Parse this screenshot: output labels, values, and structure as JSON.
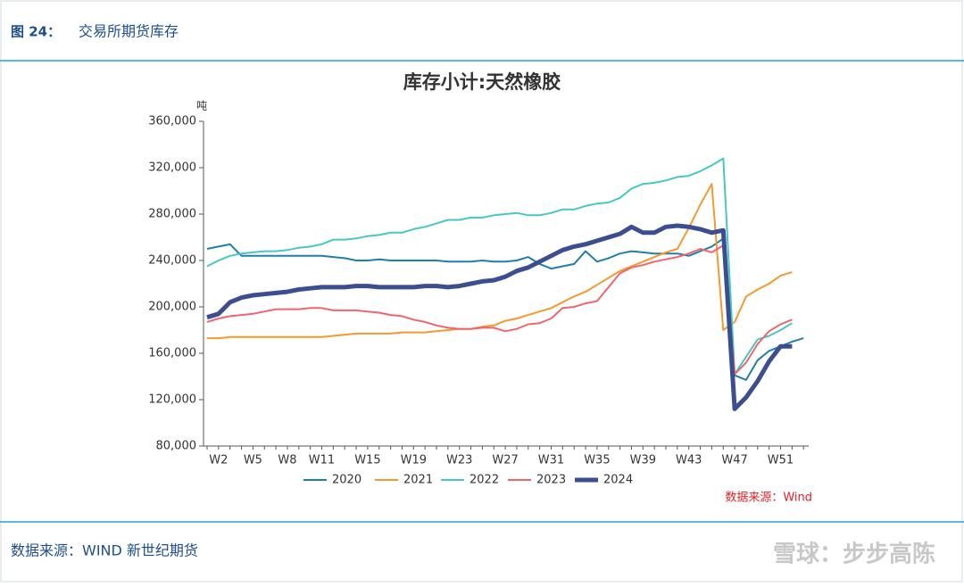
{
  "header": {
    "figure_no": "图 24：",
    "title": "交易所期货库存"
  },
  "footer": {
    "source": "数据来源：WIND  新世纪期货",
    "watermark": "雪球：步步高陈"
  },
  "chart_data": {
    "type": "line",
    "title": "库存小计:天然橡胶",
    "y_unit": "吨",
    "source_note": "数据来源：Wind",
    "categories": [
      null,
      "W2",
      null,
      null,
      "W5",
      null,
      null,
      "W8",
      null,
      null,
      "W11",
      null,
      null,
      null,
      "W15",
      null,
      null,
      null,
      "W19",
      null,
      null,
      null,
      "W23",
      null,
      null,
      null,
      "W27",
      null,
      null,
      null,
      "W31",
      null,
      null,
      null,
      "W35",
      null,
      null,
      null,
      "W39",
      null,
      null,
      null,
      "W43",
      null,
      null,
      null,
      "W47",
      null,
      null,
      null,
      "W51",
      null,
      null
    ],
    "ylim": [
      80000,
      360000
    ],
    "yticks": [
      {
        "value": 80000,
        "label": "80,000"
      },
      {
        "value": 120000,
        "label": "120,000"
      },
      {
        "value": 160000,
        "label": "160,000"
      },
      {
        "value": 200000,
        "label": "200,000"
      },
      {
        "value": 240000,
        "label": "240,000"
      },
      {
        "value": 280000,
        "label": "280,000"
      },
      {
        "value": 320000,
        "label": "320,000"
      },
      {
        "value": 360000,
        "label": "360,000"
      }
    ],
    "series": [
      {
        "name": "2020",
        "color": "#1f7fa8",
        "width": 2,
        "values": [
          250000,
          252000,
          254000,
          244000,
          244000,
          244000,
          244000,
          244000,
          244000,
          244000,
          244000,
          243000,
          242000,
          240000,
          240000,
          241000,
          240000,
          240000,
          240000,
          240000,
          240000,
          239000,
          239000,
          239000,
          240000,
          239000,
          239000,
          240000,
          243000,
          237000,
          233000,
          235000,
          237000,
          248000,
          239000,
          242000,
          246000,
          248000,
          247000,
          246000,
          246000,
          246000,
          244000,
          248000,
          252000,
          259000,
          141000,
          137000,
          154000,
          162000,
          166000,
          170000,
          173000
        ]
      },
      {
        "name": "2021",
        "color": "#f29a2e",
        "width": 2,
        "values": [
          173000,
          173000,
          174000,
          174000,
          174000,
          174000,
          174000,
          174000,
          174000,
          174000,
          174000,
          175000,
          176000,
          177000,
          177000,
          177000,
          177000,
          178000,
          178000,
          178000,
          179000,
          180000,
          181000,
          181000,
          183000,
          184000,
          188000,
          190000,
          193000,
          196000,
          199000,
          204000,
          209000,
          213000,
          219000,
          225000,
          231000,
          235000,
          239000,
          243000,
          247000,
          250000,
          268000,
          288000,
          306000,
          180000,
          187000,
          209000,
          215000,
          220000,
          227000,
          230000,
          null
        ]
      },
      {
        "name": "2022",
        "color": "#45c8c2",
        "width": 2,
        "values": [
          235000,
          240000,
          244000,
          246000,
          247000,
          248000,
          248000,
          249000,
          251000,
          252000,
          254000,
          258000,
          258000,
          259000,
          261000,
          262000,
          264000,
          264000,
          267000,
          269000,
          272000,
          275000,
          275000,
          277000,
          277000,
          279000,
          280000,
          281000,
          279000,
          279000,
          281000,
          284000,
          284000,
          287000,
          289000,
          290000,
          294000,
          302000,
          306000,
          307000,
          309000,
          312000,
          313000,
          317000,
          322000,
          328000,
          142000,
          157000,
          172000,
          175000,
          180000,
          186000,
          null
        ]
      },
      {
        "name": "2023",
        "color": "#f0646e",
        "width": 2,
        "values": [
          187000,
          190000,
          192000,
          193000,
          194000,
          196000,
          198000,
          198000,
          198000,
          199000,
          199000,
          197000,
          197000,
          197000,
          196000,
          195000,
          193000,
          192000,
          189000,
          187000,
          184000,
          182000,
          181000,
          181000,
          182000,
          182000,
          179000,
          181000,
          185000,
          186000,
          190000,
          199000,
          200000,
          203000,
          205000,
          217000,
          229000,
          234000,
          236000,
          239000,
          241000,
          243000,
          246000,
          250000,
          247000,
          253000,
          142000,
          152000,
          168000,
          179000,
          185000,
          189000,
          null
        ]
      },
      {
        "name": "2024",
        "color": "#3c4e8f",
        "width": 5,
        "values": [
          191000,
          194000,
          204000,
          208000,
          210000,
          211000,
          212000,
          213000,
          215000,
          216000,
          217000,
          217000,
          217000,
          218000,
          218000,
          217000,
          217000,
          217000,
          217000,
          218000,
          218000,
          217000,
          218000,
          220000,
          222000,
          223000,
          226000,
          231000,
          234000,
          239000,
          244000,
          249000,
          252000,
          254000,
          257000,
          260000,
          263000,
          269000,
          264000,
          264000,
          269000,
          270000,
          269000,
          267000,
          264000,
          266000,
          112000,
          122000,
          136000,
          153000,
          166000,
          166000,
          null
        ]
      }
    ]
  }
}
